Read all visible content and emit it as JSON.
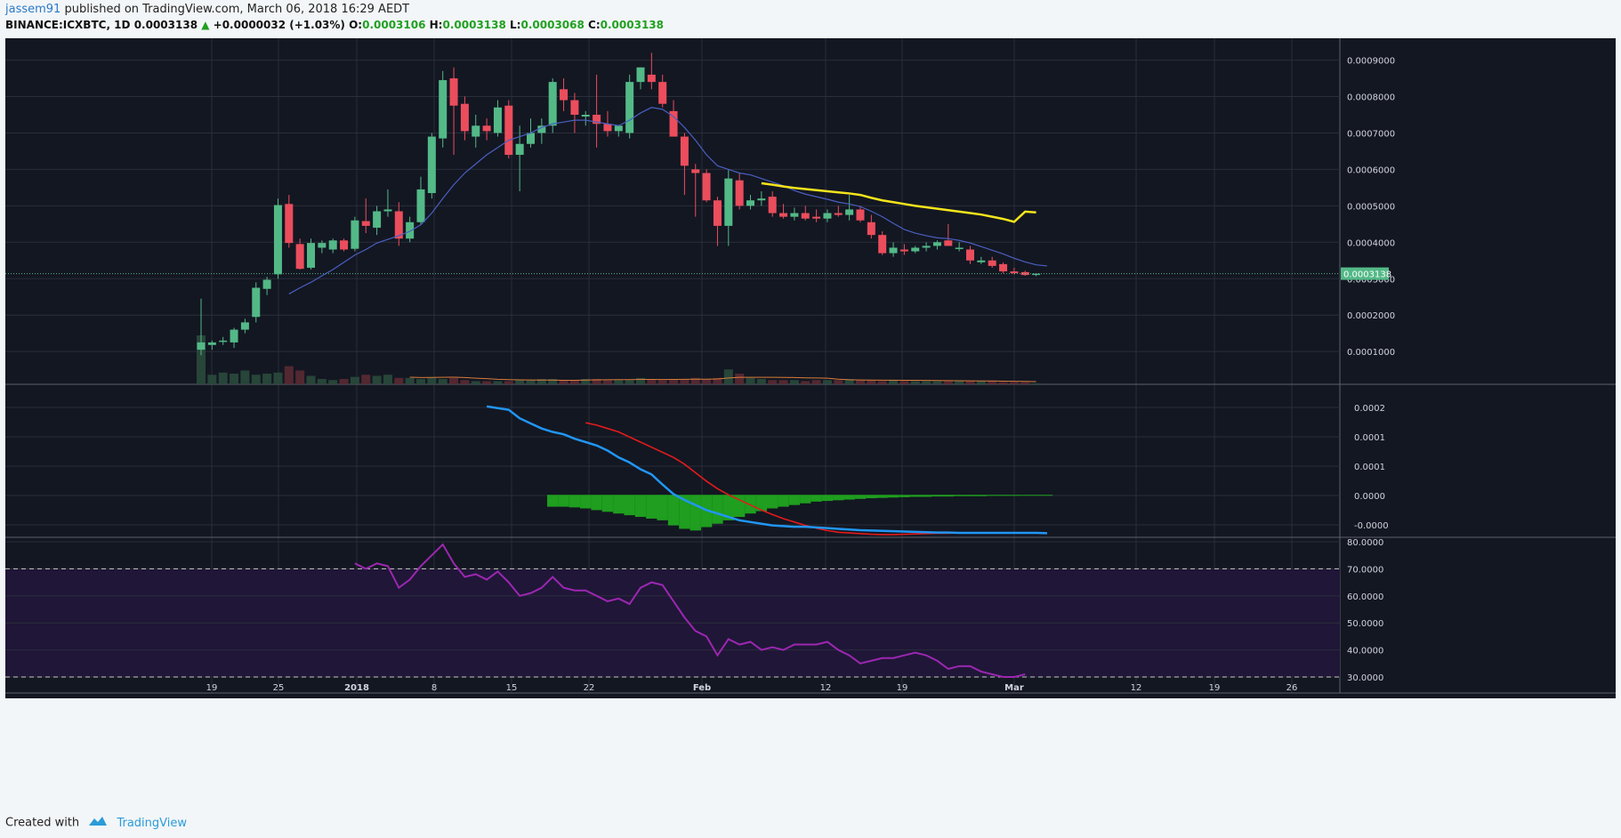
{
  "header": {
    "user": "jassem91",
    "published_text": "published on TradingView.com, March 06, 2018 16:29 AEDT"
  },
  "ohlc_line": {
    "symbol": "BINANCE:ICXBTC, 1D",
    "last": "0.0003138",
    "change": "+0.0000032 (+1.03%)",
    "o_label": "O:",
    "o": "0.0003106",
    "h_label": "H:",
    "h": "0.0003138",
    "l_label": "L:",
    "l": "0.0003068",
    "c_label": "C:",
    "c": "0.0003138"
  },
  "footer": {
    "created_with": "Created with",
    "brand": "TradingView"
  },
  "colors": {
    "background": "#131722",
    "grid": "#2a2e39",
    "up": "#53b987",
    "down": "#eb4d5c",
    "ma_blue": "#4a5fc1",
    "ma_yellow": "#f5e51b",
    "volume_ma": "#d97d3a",
    "macd_line": "#2196f3",
    "signal_line": "#e31b1b",
    "histogram": "#1f9e1f",
    "rsi_line": "#9c27b0",
    "rsi_band": "#201638",
    "price_marker": "#53b987"
  },
  "chart_data": [
    {
      "type": "candlestick",
      "title": "BINANCE:ICXBTC, 1D",
      "x_ticks": [
        "19",
        "25",
        "2018",
        "8",
        "15",
        "22",
        "Feb",
        "12",
        "19",
        "Mar",
        "12",
        "19",
        "26"
      ],
      "y_ticks": [
        "0.0009000",
        "0.0008000",
        "0.0007000",
        "0.0006000",
        "0.0005000",
        "0.0004000",
        "0.0003000",
        "0.0002000",
        "0.0001000"
      ],
      "ylim": [
        1e-05,
        0.00096
      ],
      "last_price_label": "0.0003138",
      "last_price": 0.0003138,
      "candles": [
        {
          "o": 0.000105,
          "h": 0.000245,
          "l": 9e-05,
          "c": 0.000125
        },
        {
          "o": 0.000118,
          "h": 0.00013,
          "l": 0.000105,
          "c": 0.000125
        },
        {
          "o": 0.000128,
          "h": 0.00014,
          "l": 0.000118,
          "c": 0.00013
        },
        {
          "o": 0.000125,
          "h": 0.000165,
          "l": 0.00011,
          "c": 0.00016
        },
        {
          "o": 0.00016,
          "h": 0.00019,
          "l": 0.00015,
          "c": 0.00018
        },
        {
          "o": 0.000195,
          "h": 0.00029,
          "l": 0.00018,
          "c": 0.000275
        },
        {
          "o": 0.000272,
          "h": 0.000305,
          "l": 0.000255,
          "c": 0.000297
        },
        {
          "o": 0.000312,
          "h": 0.00052,
          "l": 0.0003,
          "c": 0.000502
        },
        {
          "o": 0.000505,
          "h": 0.00053,
          "l": 0.000385,
          "c": 0.000398
        },
        {
          "o": 0.000395,
          "h": 0.00041,
          "l": 0.000325,
          "c": 0.000327
        },
        {
          "o": 0.00033,
          "h": 0.00041,
          "l": 0.000325,
          "c": 0.000398
        },
        {
          "o": 0.000385,
          "h": 0.000405,
          "l": 0.00037,
          "c": 0.000398
        },
        {
          "o": 0.00038,
          "h": 0.00041,
          "l": 0.00037,
          "c": 0.000405
        },
        {
          "o": 0.000405,
          "h": 0.00041,
          "l": 0.000375,
          "c": 0.00038
        },
        {
          "o": 0.000382,
          "h": 0.00047,
          "l": 0.000375,
          "c": 0.00046
        },
        {
          "o": 0.000458,
          "h": 0.00052,
          "l": 0.000425,
          "c": 0.000445
        },
        {
          "o": 0.00044,
          "h": 0.0005,
          "l": 0.00042,
          "c": 0.000485
        },
        {
          "o": 0.000485,
          "h": 0.000545,
          "l": 0.00047,
          "c": 0.00049
        },
        {
          "o": 0.000485,
          "h": 0.00051,
          "l": 0.00039,
          "c": 0.00041
        },
        {
          "o": 0.00041,
          "h": 0.00047,
          "l": 0.0004,
          "c": 0.000455
        },
        {
          "o": 0.000455,
          "h": 0.00058,
          "l": 0.00045,
          "c": 0.000545
        },
        {
          "o": 0.000535,
          "h": 0.0007,
          "l": 0.00052,
          "c": 0.00069
        },
        {
          "o": 0.000685,
          "h": 0.00087,
          "l": 0.00066,
          "c": 0.000845
        },
        {
          "o": 0.00085,
          "h": 0.00088,
          "l": 0.00064,
          "c": 0.000775
        },
        {
          "o": 0.00078,
          "h": 0.0008,
          "l": 0.00068,
          "c": 0.000705
        },
        {
          "o": 0.00069,
          "h": 0.00075,
          "l": 0.00066,
          "c": 0.00072
        },
        {
          "o": 0.00072,
          "h": 0.00074,
          "l": 0.00068,
          "c": 0.000705
        },
        {
          "o": 0.0007,
          "h": 0.00079,
          "l": 0.00069,
          "c": 0.00077
        },
        {
          "o": 0.000775,
          "h": 0.00079,
          "l": 0.00063,
          "c": 0.00064
        },
        {
          "o": 0.00064,
          "h": 0.00072,
          "l": 0.00054,
          "c": 0.00067
        },
        {
          "o": 0.00067,
          "h": 0.00074,
          "l": 0.00066,
          "c": 0.0007
        },
        {
          "o": 0.0007,
          "h": 0.00074,
          "l": 0.00067,
          "c": 0.00072
        },
        {
          "o": 0.00072,
          "h": 0.00085,
          "l": 0.0007,
          "c": 0.00084
        },
        {
          "o": 0.00082,
          "h": 0.00085,
          "l": 0.00076,
          "c": 0.00079
        },
        {
          "o": 0.00079,
          "h": 0.00081,
          "l": 0.0007,
          "c": 0.00075
        },
        {
          "o": 0.000745,
          "h": 0.00076,
          "l": 0.00072,
          "c": 0.00075
        },
        {
          "o": 0.00075,
          "h": 0.00086,
          "l": 0.00066,
          "c": 0.000725
        },
        {
          "o": 0.000725,
          "h": 0.00076,
          "l": 0.00069,
          "c": 0.000705
        },
        {
          "o": 0.000705,
          "h": 0.00072,
          "l": 0.00069,
          "c": 0.00072
        },
        {
          "o": 0.0007,
          "h": 0.00086,
          "l": 0.000685,
          "c": 0.00084
        },
        {
          "o": 0.00084,
          "h": 0.00088,
          "l": 0.00082,
          "c": 0.00088
        },
        {
          "o": 0.00086,
          "h": 0.00092,
          "l": 0.00082,
          "c": 0.00084
        },
        {
          "o": 0.00084,
          "h": 0.00086,
          "l": 0.00077,
          "c": 0.00078
        },
        {
          "o": 0.00076,
          "h": 0.00079,
          "l": 0.00069,
          "c": 0.00069
        },
        {
          "o": 0.00069,
          "h": 0.0007,
          "l": 0.00053,
          "c": 0.00061
        },
        {
          "o": 0.0006,
          "h": 0.000615,
          "l": 0.00047,
          "c": 0.00059
        },
        {
          "o": 0.00059,
          "h": 0.0006,
          "l": 0.00051,
          "c": 0.000515
        },
        {
          "o": 0.000515,
          "h": 0.000525,
          "l": 0.00039,
          "c": 0.000445
        },
        {
          "o": 0.000445,
          "h": 0.0006,
          "l": 0.00039,
          "c": 0.000575
        },
        {
          "o": 0.00057,
          "h": 0.00059,
          "l": 0.00049,
          "c": 0.0005
        },
        {
          "o": 0.0005,
          "h": 0.00053,
          "l": 0.00049,
          "c": 0.000515
        },
        {
          "o": 0.000515,
          "h": 0.00054,
          "l": 0.0005,
          "c": 0.00052
        },
        {
          "o": 0.000525,
          "h": 0.00054,
          "l": 0.00047,
          "c": 0.00048
        },
        {
          "o": 0.00048,
          "h": 0.000505,
          "l": 0.000465,
          "c": 0.00047
        },
        {
          "o": 0.00047,
          "h": 0.000495,
          "l": 0.00046,
          "c": 0.00048
        },
        {
          "o": 0.00048,
          "h": 0.0005,
          "l": 0.00046,
          "c": 0.000465
        },
        {
          "o": 0.00047,
          "h": 0.00049,
          "l": 0.000455,
          "c": 0.000465
        },
        {
          "o": 0.000465,
          "h": 0.00049,
          "l": 0.000455,
          "c": 0.00048
        },
        {
          "o": 0.00048,
          "h": 0.0005,
          "l": 0.00047,
          "c": 0.000475
        },
        {
          "o": 0.000475,
          "h": 0.00053,
          "l": 0.00046,
          "c": 0.00049
        },
        {
          "o": 0.00049,
          "h": 0.0005,
          "l": 0.000455,
          "c": 0.00046
        },
        {
          "o": 0.000455,
          "h": 0.000475,
          "l": 0.00041,
          "c": 0.00042
        },
        {
          "o": 0.00042,
          "h": 0.00043,
          "l": 0.000365,
          "c": 0.00037
        },
        {
          "o": 0.00037,
          "h": 0.0004,
          "l": 0.00036,
          "c": 0.000385
        },
        {
          "o": 0.00038,
          "h": 0.000395,
          "l": 0.000365,
          "c": 0.000375
        },
        {
          "o": 0.000375,
          "h": 0.00039,
          "l": 0.00037,
          "c": 0.000385
        },
        {
          "o": 0.000385,
          "h": 0.0004,
          "l": 0.000375,
          "c": 0.00039
        },
        {
          "o": 0.00039,
          "h": 0.000405,
          "l": 0.00038,
          "c": 0.0004
        },
        {
          "o": 0.000405,
          "h": 0.00045,
          "l": 0.00039,
          "c": 0.00039
        },
        {
          "o": 0.000385,
          "h": 0.0004,
          "l": 0.000375,
          "c": 0.000385
        },
        {
          "o": 0.00038,
          "h": 0.00039,
          "l": 0.00034,
          "c": 0.00035
        },
        {
          "o": 0.000345,
          "h": 0.00036,
          "l": 0.00034,
          "c": 0.00035
        },
        {
          "o": 0.00035,
          "h": 0.00036,
          "l": 0.00033,
          "c": 0.000335
        },
        {
          "o": 0.00034,
          "h": 0.000345,
          "l": 0.000315,
          "c": 0.00032
        },
        {
          "o": 0.00032,
          "h": 0.00033,
          "l": 0.000312,
          "c": 0.000315
        },
        {
          "o": 0.000318,
          "h": 0.000322,
          "l": 0.000308,
          "c": 0.00031
        },
        {
          "o": 0.0003106,
          "h": 0.0003138,
          "l": 0.0003068,
          "c": 0.0003138
        }
      ],
      "ma_blue": [
        null,
        null,
        null,
        null,
        null,
        null,
        null,
        null,
        0.000258,
        0.000275,
        0.00029,
        0.000308,
        0.000325,
        0.000345,
        0.000365,
        0.00038,
        0.000398,
        0.000408,
        0.000418,
        0.00043,
        0.000448,
        0.00048,
        0.00052,
        0.000558,
        0.00059,
        0.000615,
        0.00064,
        0.00066,
        0.00068,
        0.00069,
        0.0007,
        0.000715,
        0.000725,
        0.00073,
        0.000735,
        0.000735,
        0.00073,
        0.000725,
        0.00072,
        0.000735,
        0.000755,
        0.00077,
        0.000765,
        0.000745,
        0.000715,
        0.00068,
        0.00064,
        0.00061,
        0.0006,
        0.00059,
        0.000585,
        0.000575,
        0.000565,
        0.000555,
        0.000542,
        0.000532,
        0.000525,
        0.000518,
        0.00051,
        0.000505,
        0.000498,
        0.000485,
        0.00047,
        0.000452,
        0.000435,
        0.000425,
        0.000418,
        0.000412,
        0.00041,
        0.000405,
        0.000398,
        0.000388,
        0.000378,
        0.000368,
        0.000356,
        0.000346,
        0.000338,
        0.000335
      ],
      "ma_yellow_start_index": 51,
      "ma_yellow": [
        0.000562,
        0.000558,
        0.000553,
        0.000549,
        0.000546,
        0.000543,
        0.00054,
        0.000537,
        0.000534,
        0.00053,
        0.000522,
        0.000515,
        0.00051,
        0.000505,
        0.0005,
        0.000496,
        0.000492,
        0.000488,
        0.000484,
        0.00048,
        0.000476,
        0.00047,
        0.000464,
        0.000456,
        0.000484,
        0.000482,
        0.000479
      ],
      "volume": [
        46,
        9,
        11,
        10,
        13,
        9,
        10,
        11,
        17,
        13,
        8,
        5,
        4,
        5,
        7,
        9,
        8,
        9,
        6,
        6,
        5,
        6,
        5,
        6,
        4,
        3,
        3,
        3,
        3,
        4,
        4,
        5,
        5,
        4,
        4,
        5,
        5,
        4,
        4,
        4,
        6,
        5,
        4,
        5,
        5,
        6,
        5,
        6,
        14,
        10,
        6,
        5,
        4,
        4,
        4,
        3,
        4,
        4,
        4,
        5,
        4,
        4,
        3,
        4,
        3,
        3,
        3,
        3,
        3,
        3,
        3,
        3,
        3,
        2,
        2,
        2,
        1
      ],
      "volume_ma_start_index": 19
    },
    {
      "type": "line",
      "title": "MACD",
      "y_ticks": [
        "0.0002",
        "0.0001",
        "0.0001",
        "0.0000",
        "-0.0000"
      ],
      "ylim": [
        -0.000125,
        0.000325
      ],
      "macd_start_index": 26,
      "macd": [
        0.00026,
        0.000255,
        0.00025,
        0.000225,
        0.00021,
        0.000195,
        0.000185,
        0.000178,
        0.000165,
        0.000155,
        0.000145,
        0.00013,
        0.00011,
        9.5e-05,
        7.5e-05,
        6e-05,
        3e-05,
        2e-06,
        -1.5e-05,
        -3e-05,
        -4.5e-05,
        -5.5e-05,
        -6.5e-05,
        -7.5e-05,
        -8e-05,
        -8.5e-05,
        -9e-05,
        -9.2e-05,
        -9.4e-05,
        -9.4e-05,
        -9.6e-05,
        -9.8e-05,
        -0.0001,
        -0.000102,
        -0.000104,
        -0.000105,
        -0.000106,
        -0.000107,
        -0.000108,
        -0.000109,
        -0.00011,
        -0.000111,
        -0.000111,
        -0.000112,
        -0.000112,
        -0.000112,
        -0.000112,
        -0.000112,
        -0.000112,
        -0.000112,
        -0.000112,
        -0.000113
      ],
      "signal_start_index": 35,
      "signal": [
        0.000212,
        0.000205,
        0.000195,
        0.000185,
        0.00017,
        0.000155,
        0.00014,
        0.000125,
        0.00011,
        9e-05,
        6.5e-05,
        4e-05,
        1.8e-05,
        0.0,
        -1.5e-05,
        -3e-05,
        -4.5e-05,
        -5.8e-05,
        -7e-05,
        -8e-05,
        -9e-05,
        -9.8e-05,
        -0.000105,
        -0.00011,
        -0.000112,
        -0.000114,
        -0.000116,
        -0.000117,
        -0.000117,
        -0.000116,
        -0.000115,
        -0.000114,
        -0.000113,
        -0.000113,
        -0.000112,
        -0.000112,
        -0.000112,
        -0.000112,
        -0.000112,
        -0.000112,
        -0.000112
      ],
      "histogram_start_index": 32,
      "histogram": [
        -3.5e-05,
        -3.5e-05,
        -3.7e-05,
        -4e-05,
        -4.5e-05,
        -5e-05,
        -5.5e-05,
        -6e-05,
        -6.5e-05,
        -7e-05,
        -7.5e-05,
        -9e-05,
        -0.0001,
        -0.000105,
        -9.5e-05,
        -8.5e-05,
        -7.5e-05,
        -6.5e-05,
        -5.5e-05,
        -4.8e-05,
        -4e-05,
        -3.5e-05,
        -3e-05,
        -2.5e-05,
        -2e-05,
        -1.8e-05,
        -1.6e-05,
        -1.4e-05,
        -1.2e-05,
        -1e-05,
        -9e-06,
        -8e-06,
        -7e-06,
        -6e-06,
        -6e-06,
        -5e-06,
        -5e-06,
        -4e-06,
        -4e-06,
        -4e-06,
        -3e-06,
        -3e-06,
        -3e-06,
        -2e-06,
        -2e-06,
        -1e-06
      ]
    },
    {
      "type": "line",
      "title": "RSI",
      "y_ticks": [
        "80.0000",
        "70.0000",
        "60.0000",
        "50.0000",
        "40.0000",
        "30.0000"
      ],
      "ylim": [
        25,
        85
      ],
      "bands": [
        30,
        70
      ],
      "rsi_start_index": 14,
      "rsi": [
        72,
        70,
        72,
        71,
        63,
        66,
        71,
        75,
        79,
        72,
        67,
        68,
        66,
        69,
        65,
        60,
        61,
        63,
        67,
        63,
        62,
        62,
        60,
        58,
        59,
        57,
        63,
        65,
        64,
        58,
        52,
        47,
        45,
        38,
        44,
        42,
        43,
        40,
        41,
        40,
        42,
        42,
        42,
        43,
        40,
        38,
        35,
        36,
        37,
        37,
        38,
        39,
        38,
        36,
        33,
        34,
        34,
        32,
        31,
        30,
        30,
        31
      ]
    }
  ]
}
